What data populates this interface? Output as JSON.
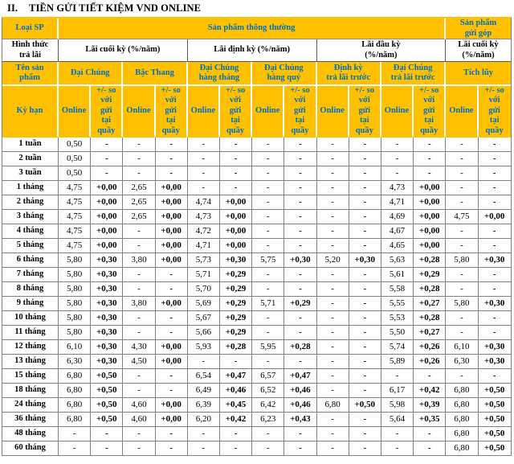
{
  "colors": {
    "header_bg": "#FFC000",
    "header_text": "#0070C0",
    "body_text": "#000000",
    "grid_line": "#808080"
  },
  "title": {
    "number": "II.",
    "text": "TIỀN GỬI TIẾT KIỆM VND ONLINE"
  },
  "table": {
    "header": {
      "loai_sp": "Loại SP",
      "san_pham_thong_thuong": "Sản phẩm thông thường",
      "san_pham_gui_gop": "Sản phẩm\ngửi góp",
      "hinh_thuc_tra_lai": "Hình thức\ntrả lãi",
      "interest_groups": [
        "Lãi cuối kỳ (%/năm)",
        "Lãi định kỳ (%/năm)",
        "Lãi đầu kỳ\n(%/năm)",
        "Lãi cuối kỳ\n(%/năm)"
      ],
      "ten_san_pham": "Tên sản\nphẩm",
      "products": [
        "Đại Chúng",
        "Bậc Thang",
        "Đại Chúng\nhàng tháng",
        "Đại Chúng\nhàng quý",
        "Định kỳ\ntrả lãi trước",
        "Đại Chúng\ntrả lãi trước",
        "Tích lũy"
      ],
      "ky_han": "Kỳ hạn",
      "online_label": "Online",
      "plus_minus_label": "+/- so với gửi tại quầy"
    },
    "rows": [
      {
        "term": "1 tuần",
        "cells": [
          "0,50",
          "-",
          "-",
          "-",
          "-",
          "-",
          "-",
          "-",
          "-",
          "-",
          "-",
          "-",
          "-",
          "-"
        ]
      },
      {
        "term": "2 tuần",
        "cells": [
          "0,50",
          "-",
          "-",
          "-",
          "-",
          "-",
          "-",
          "-",
          "-",
          "-",
          "-",
          "-",
          "-",
          "-"
        ]
      },
      {
        "term": "3 tuần",
        "cells": [
          "0,50",
          "-",
          "-",
          "-",
          "-",
          "-",
          "-",
          "-",
          "-",
          "-",
          "-",
          "-",
          "-",
          "-"
        ]
      },
      {
        "term": "1 tháng",
        "cells": [
          "4,75",
          "+0,00",
          "2,65",
          "+0,00",
          "-",
          "-",
          "-",
          "-",
          "-",
          "-",
          "4,73",
          "+0,00",
          "-",
          "-"
        ]
      },
      {
        "term": "2 tháng",
        "cells": [
          "4,75",
          "+0,00",
          "2,65",
          "+0,00",
          "4,74",
          "+0,00",
          "-",
          "-",
          "-",
          "-",
          "4,71",
          "+0,00",
          "-",
          "-"
        ]
      },
      {
        "term": "3 tháng",
        "cells": [
          "4,75",
          "+0,00",
          "2,65",
          "+0,00",
          "4,73",
          "+0,00",
          "-",
          "-",
          "-",
          "-",
          "4,69",
          "+0,00",
          "4,75",
          "+0,00"
        ]
      },
      {
        "term": "4 tháng",
        "cells": [
          "4,75",
          "+0,00",
          "-",
          "+0,00",
          "4,72",
          "+0,00",
          "-",
          "-",
          "-",
          "-",
          "4,67",
          "+0,00",
          "-",
          "-"
        ]
      },
      {
        "term": "5 tháng",
        "cells": [
          "4,75",
          "+0,00",
          "-",
          "+0,00",
          "4,71",
          "+0,00",
          "-",
          "-",
          "-",
          "-",
          "4,65",
          "+0,00",
          "-",
          "-"
        ]
      },
      {
        "term": "6 tháng",
        "cells": [
          "5,80",
          "+0,30",
          "3,80",
          "+0,00",
          "5,73",
          "+0,30",
          "5,75",
          "+0,30",
          "5,20",
          "+0,30",
          "5,63",
          "+0,28",
          "5,80",
          "+0,30"
        ]
      },
      {
        "term": "7 tháng",
        "cells": [
          "5,80",
          "+0,30",
          "-",
          "-",
          "5,71",
          "+0,29",
          "-",
          "-",
          "-",
          "-",
          "5,61",
          "+0,29",
          "-",
          "-"
        ]
      },
      {
        "term": "8 tháng",
        "cells": [
          "5,80",
          "+0,30",
          "-",
          "-",
          "5,70",
          "+0,29",
          "-",
          "-",
          "-",
          "-",
          "5,58",
          "+0,28",
          "-",
          "-"
        ]
      },
      {
        "term": "9 tháng",
        "cells": [
          "5,80",
          "+0,30",
          "3,80",
          "+0,00",
          "5,69",
          "+0,29",
          "5,71",
          "+0,29",
          "-",
          "-",
          "5,55",
          "+0,27",
          "5,80",
          "+0,30"
        ]
      },
      {
        "term": "10 tháng",
        "cells": [
          "5,80",
          "+0,30",
          "-",
          "-",
          "5,67",
          "+0,29",
          "-",
          "-",
          "-",
          "-",
          "5,53",
          "+0,28",
          "-",
          "-"
        ]
      },
      {
        "term": "11 tháng",
        "cells": [
          "5,80",
          "+0,30",
          "-",
          "-",
          "5,66",
          "+0,29",
          "-",
          "-",
          "-",
          "-",
          "5,50",
          "+0,27",
          "-",
          "-"
        ]
      },
      {
        "term": "12 tháng",
        "cells": [
          "6,10",
          "+0,30",
          "4,30",
          "+0,00",
          "5,93",
          "+0,28",
          "5,95",
          "+0,28",
          "-",
          "-",
          "5,74",
          "+0,26",
          "6,10",
          "+0,30"
        ]
      },
      {
        "term": "13 tháng",
        "cells": [
          "6,30",
          "+0,30",
          "4,50",
          "+0,00",
          "-",
          "-",
          "-",
          "-",
          "-",
          "-",
          "5,89",
          "+0,26",
          "6,30",
          "+0,30"
        ]
      },
      {
        "term": "15 tháng",
        "cells": [
          "6,80",
          "+0,50",
          "-",
          "-",
          "6,54",
          "+0,47",
          "6,57",
          "+0,47",
          "-",
          "-",
          "-",
          "-",
          "-",
          "-"
        ]
      },
      {
        "term": "18 tháng",
        "cells": [
          "6,80",
          "+0,50",
          "-",
          "-",
          "6,49",
          "+0,46",
          "6,52",
          "+0,46",
          "-",
          "-",
          "6,17",
          "+0,42",
          "6,80",
          "+0,50"
        ]
      },
      {
        "term": "24 tháng",
        "cells": [
          "6,80",
          "+0,50",
          "4,60",
          "+0,00",
          "6,39",
          "+0,45",
          "6,42",
          "+0,46",
          "6,80",
          "+0,50",
          "5,98",
          "+0,39",
          "6,80",
          "+0,50"
        ]
      },
      {
        "term": "36 tháng",
        "cells": [
          "6,80",
          "+0,50",
          "4,60",
          "+0,00",
          "6,20",
          "+0,42",
          "6,23",
          "+0,43",
          "-",
          "-",
          "5,64",
          "+0,35",
          "6,80",
          "+0,50"
        ]
      },
      {
        "term": "48 tháng",
        "cells": [
          "-",
          "-",
          "-",
          "-",
          "-",
          "-",
          "-",
          "-",
          "-",
          "-",
          "-",
          "-",
          "6,80",
          "+0,50"
        ]
      },
      {
        "term": "60 tháng",
        "cells": [
          "-",
          "-",
          "-",
          "-",
          "-",
          "-",
          "-",
          "-",
          "-",
          "-",
          "-",
          "-",
          "6,80",
          "+0,50"
        ]
      }
    ]
  }
}
